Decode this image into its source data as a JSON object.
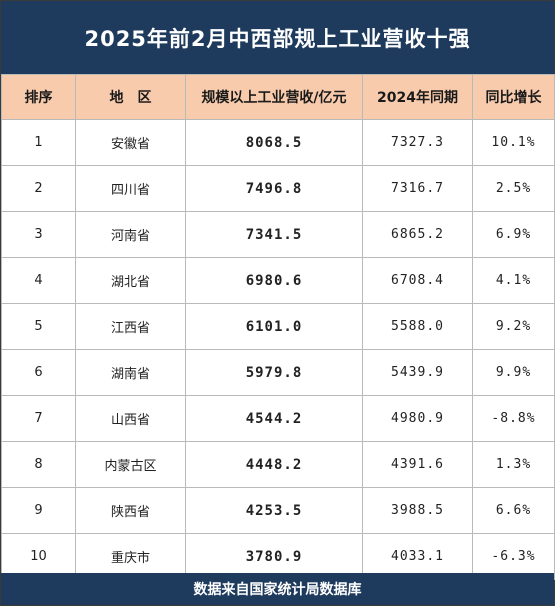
{
  "title": "2025年前2月中西部规上工业营收十强",
  "headers": {
    "rank": "排序",
    "region": "地　区",
    "value": "规模以上工业营收/亿元",
    "prev": "2024年同期",
    "growth": "同比增长"
  },
  "rows": [
    {
      "rank": "1",
      "region": "安徽省",
      "value": "8068.5",
      "prev": "7327.3",
      "growth": "10.1%"
    },
    {
      "rank": "2",
      "region": "四川省",
      "value": "7496.8",
      "prev": "7316.7",
      "growth": "2.5%"
    },
    {
      "rank": "3",
      "region": "河南省",
      "value": "7341.5",
      "prev": "6865.2",
      "growth": "6.9%"
    },
    {
      "rank": "4",
      "region": "湖北省",
      "value": "6980.6",
      "prev": "6708.4",
      "growth": "4.1%"
    },
    {
      "rank": "5",
      "region": "江西省",
      "value": "6101.0",
      "prev": "5588.0",
      "growth": "9.2%"
    },
    {
      "rank": "6",
      "region": "湖南省",
      "value": "5979.8",
      "prev": "5439.9",
      "growth": "9.9%"
    },
    {
      "rank": "7",
      "region": "山西省",
      "value": "4544.2",
      "prev": "4980.9",
      "growth": "-8.8%"
    },
    {
      "rank": "8",
      "region": "内蒙古区",
      "value": "4448.2",
      "prev": "4391.6",
      "growth": "1.3%"
    },
    {
      "rank": "9",
      "region": "陕西省",
      "value": "4253.5",
      "prev": "3988.5",
      "growth": "6.6%"
    },
    {
      "rank": "10",
      "region": "重庆市",
      "value": "3780.9",
      "prev": "4033.1",
      "growth": "-6.3%"
    }
  ],
  "footer": "数据来自国家统计局数据库",
  "colors": {
    "header_bg": "#1e3a5c",
    "table_header_bg": "#f8cbad"
  }
}
